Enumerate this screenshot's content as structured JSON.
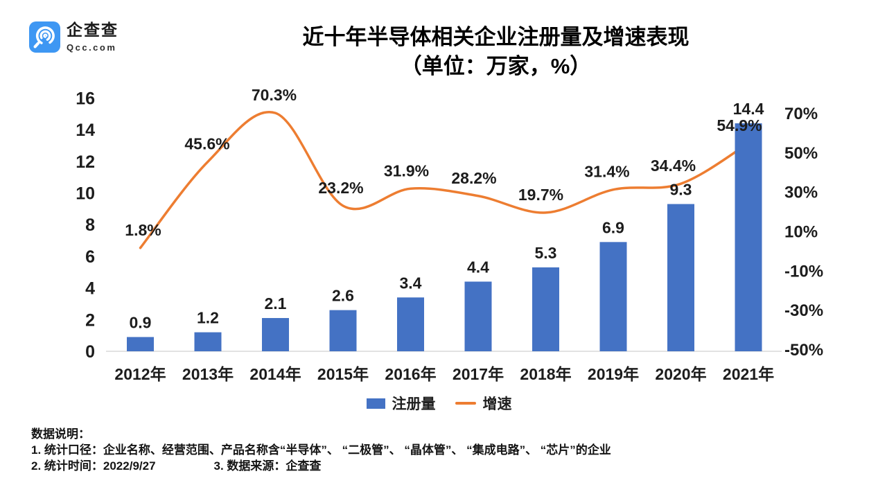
{
  "logo": {
    "brand": "企查查",
    "domain": "Qcc.com"
  },
  "title": {
    "line1": "近十年半导体相关企业注册量及增速表现",
    "line2": "（单位：万家，%）"
  },
  "chart_data": {
    "type": "combo",
    "categories": [
      "2012年",
      "2013年",
      "2014年",
      "2015年",
      "2016年",
      "2017年",
      "2018年",
      "2019年",
      "2020年",
      "2021年"
    ],
    "series": [
      {
        "name": "注册量",
        "type": "bar",
        "color": "#4472C4",
        "values": [
          0.9,
          1.2,
          2.1,
          2.6,
          3.4,
          4.4,
          5.3,
          6.9,
          9.3,
          14.4
        ]
      },
      {
        "name": "增速",
        "type": "line",
        "color": "#ED7D31",
        "label_suffix": "%",
        "values": [
          1.8,
          45.6,
          70.3,
          23.2,
          31.9,
          28.2,
          19.7,
          31.4,
          34.4,
          54.9
        ]
      }
    ],
    "left_axis": {
      "ticks": [
        0,
        2,
        4,
        6,
        8,
        10,
        12,
        14,
        16
      ],
      "range": [
        0,
        16
      ]
    },
    "right_axis": {
      "ticks": [
        "70%",
        "50%",
        "30%",
        "10%",
        "-10%",
        "-30%",
        "-50%"
      ],
      "range": [
        -50,
        70
      ]
    },
    "grid": false,
    "legend_position": "bottom"
  },
  "legend": {
    "items": [
      {
        "label": "注册量",
        "color": "#4472C4",
        "marker": "square"
      },
      {
        "label": "增速",
        "color": "#ED7D31",
        "marker": "line"
      }
    ]
  },
  "footnote": {
    "heading": "数据说明：",
    "line1": "1. 统计口径：企业名称、经营范围、产品名称含“半导体”、 “二极管”、 “晶体管”、 “集成电路”、 “芯片”的企业",
    "line2_left": "2. 统计时间：2022/9/27",
    "line2_right": "3. 数据来源：企查查"
  },
  "colors": {
    "axis_line": "#D9D9D9",
    "logo_blue": "#3E97F3"
  }
}
